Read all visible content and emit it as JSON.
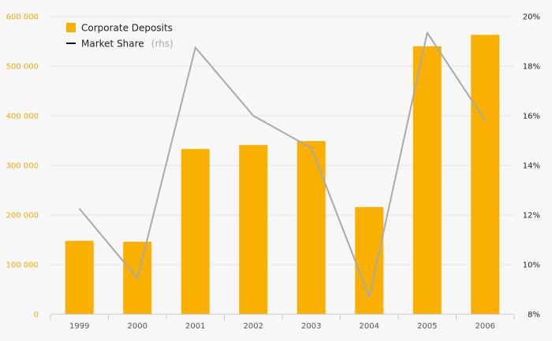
{
  "chart_data": {
    "type": "bar+line",
    "categories": [
      "1999",
      "2000",
      "2001",
      "2002",
      "2003",
      "2004",
      "2005",
      "2006"
    ],
    "series": [
      {
        "name": "Corporate Deposits",
        "type": "bar",
        "axis": "left",
        "color": "#f9b000",
        "values": [
          148000,
          146000,
          333000,
          341000,
          349000,
          216000,
          540000,
          563000
        ]
      },
      {
        "name": "Market Share",
        "type": "line",
        "axis": "right",
        "color": "#a9a9a9",
        "values": [
          12.25,
          9.45,
          18.75,
          16.0,
          14.7,
          8.7,
          19.35,
          15.8
        ]
      }
    ],
    "left_axis": {
      "ylim": [
        0,
        600000
      ],
      "ticks": [
        0,
        100000,
        200000,
        300000,
        400000,
        500000,
        600000
      ],
      "tick_labels": [
        "0",
        "100 000",
        "200 000",
        "300 000",
        "400 000",
        "500 000",
        "600 000"
      ],
      "color": "#f5a800"
    },
    "right_axis": {
      "ylim": [
        8,
        20
      ],
      "ticks": [
        8,
        10,
        12,
        14,
        16,
        18,
        20
      ],
      "tick_labels": [
        "8%",
        "10%",
        "12%",
        "14%",
        "16%",
        "18%",
        "20%"
      ],
      "color": "#222222"
    },
    "legend": {
      "position": "top-left",
      "items": [
        {
          "label": "Corporate Deposits",
          "note": "",
          "symbol": "square"
        },
        {
          "label": "Market Share",
          "note": "(rhs)",
          "symbol": "line"
        }
      ]
    },
    "grid": true
  }
}
